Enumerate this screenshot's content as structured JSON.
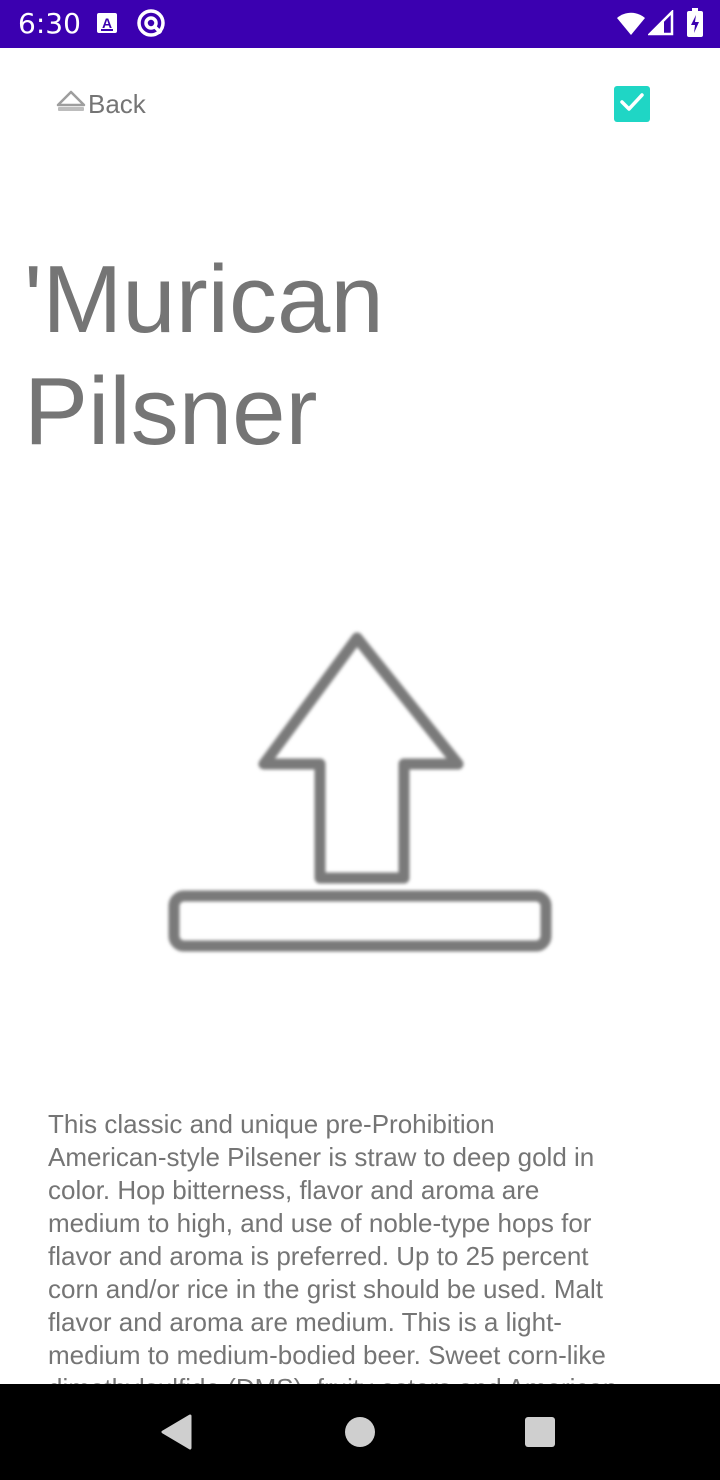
{
  "status_bar": {
    "time": "6:30",
    "background": "#3b00b0",
    "icons": [
      "a-icon",
      "at-icon",
      "wifi-icon",
      "signal-icon",
      "battery-icon"
    ]
  },
  "toolbar": {
    "back_label": "Back",
    "back_icon": "eject-icon",
    "done_checked": true,
    "accent_color": "#1fd6c5"
  },
  "beer": {
    "title": "'Murican Pilsner",
    "image_icon": "upload-icon",
    "description": "This classic and unique pre-Prohibition American-style Pilsener is straw to deep gold in color. Hop bitterness, flavor and aroma are medium to high, and use of noble-type hops for flavor and aroma is preferred. Up to 25 percent corn and/or rice in the grist should be used. Malt flavor and aroma are medium. This is a light-medium to medium-bodied beer. Sweet corn-like dimethylsulfide (DMS), fruity esters and American hop-derived citrus flavors or aromas should not be perceived. Diacetyl is not acceptable. There should be no chill haze."
  },
  "nav_bar": {
    "buttons": [
      "back-triangle-icon",
      "home-circle-icon",
      "recents-square-icon"
    ]
  }
}
